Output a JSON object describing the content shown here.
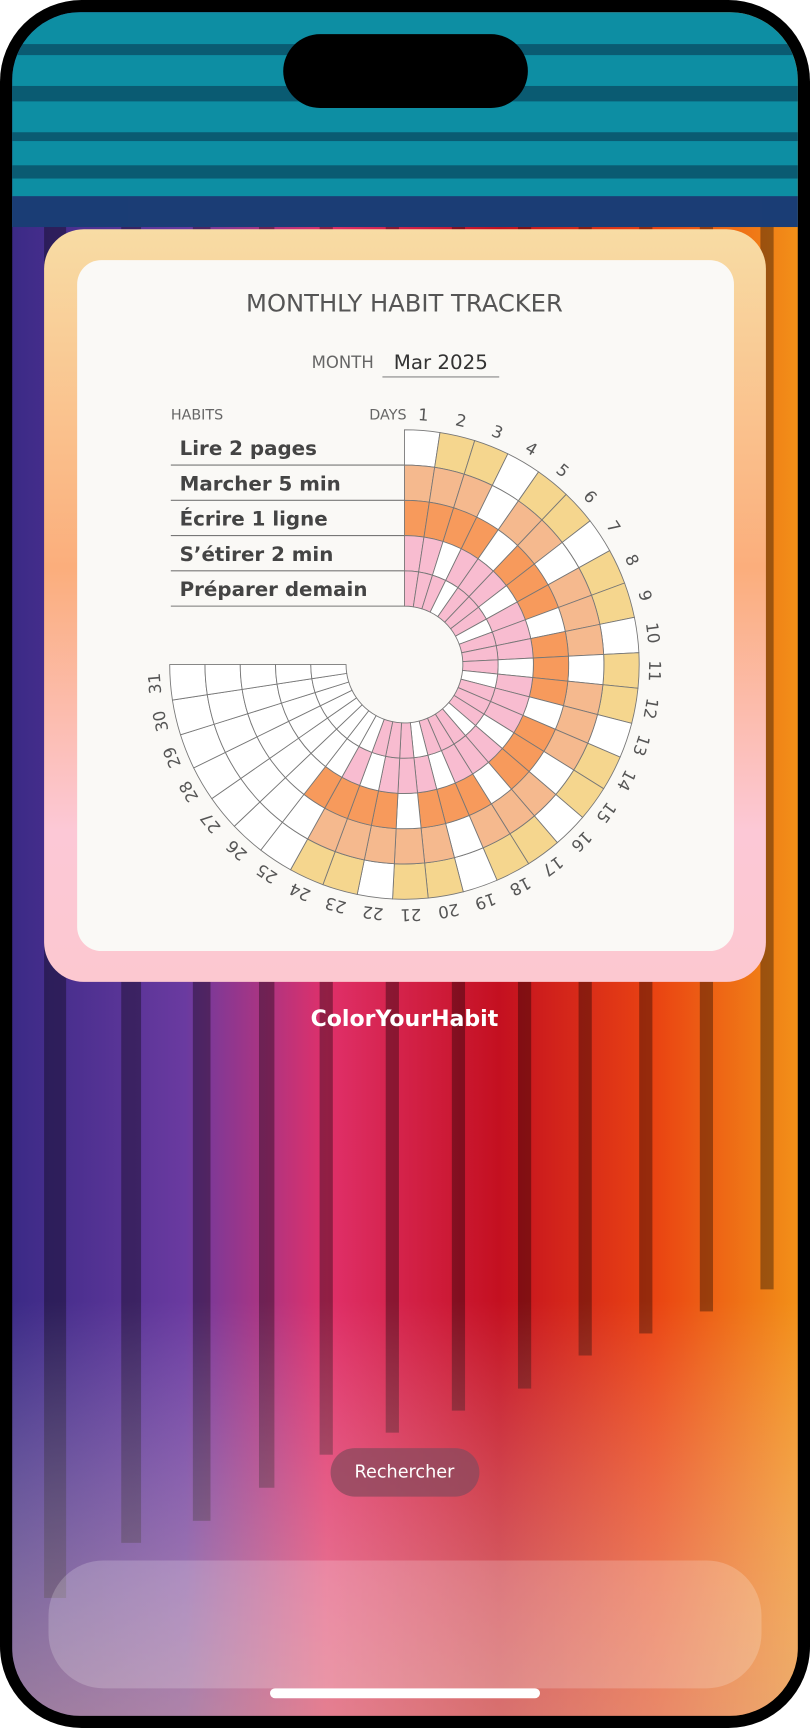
{
  "widget": {
    "title": "MONTHLY HABIT TRACKER",
    "month_label": "MONTH",
    "month_value": "Mar 2025",
    "habits_label": "HABITS",
    "days_label": "DAYS",
    "days": [
      1,
      2,
      3,
      4,
      5,
      6,
      7,
      8,
      9,
      10,
      11,
      12,
      13,
      14,
      15,
      16,
      17,
      18,
      19,
      20,
      21,
      22,
      23,
      24,
      25,
      26,
      27,
      28,
      29,
      30,
      31
    ],
    "palette": {
      "w": "#ffffff",
      "y": "#f5d68e",
      "p": "#f5b98e",
      "o": "#f79a5c",
      "k": "#f8bcd0"
    },
    "habits": [
      {
        "name": "Lire 2 pages",
        "states": "wyywyywyywyywyywyywyywyywwwwwww"
      },
      {
        "name": "Marcher 5 min",
        "states": "pppwppwpppwpppwpppwpppppwwwwwww"
      },
      {
        "name": "Écrire 1 ligne",
        "states": "oooowooowooowooowooowoooowwwwwww"
      },
      {
        "name": "S’étirer 2 min",
        "states": "kkwkkkwkkkwkkkwkkkwkkkwkwwwwwww"
      },
      {
        "name": "Préparer demain",
        "states": "kkkwkkkwkkkwkkkwkkkwkkkwwwwwwww"
      }
    ]
  },
  "app_name": "ColorYourHabit",
  "search_button": "Rechercher"
}
